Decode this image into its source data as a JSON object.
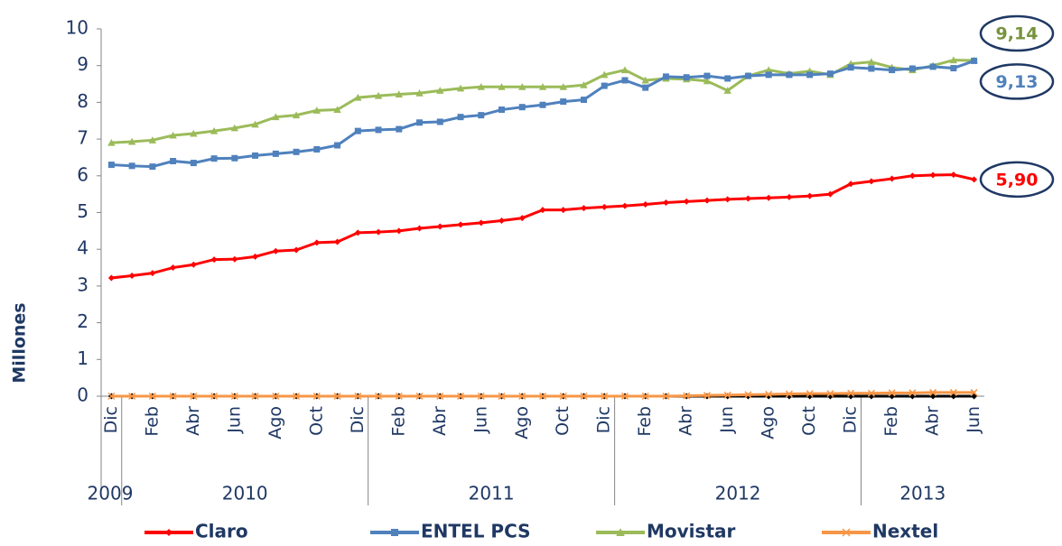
{
  "chart_data": {
    "type": "line",
    "y_label": "Millones",
    "categories": [
      "Dic",
      null,
      "Feb",
      null,
      "Abr",
      null,
      "Jun",
      null,
      "Ago",
      null,
      "Oct",
      null,
      "Dic",
      null,
      "Feb",
      null,
      "Abr",
      null,
      "Jun",
      null,
      "Ago",
      null,
      "Oct",
      null,
      "Dic",
      null,
      "Feb",
      null,
      "Abr",
      null,
      "Jun",
      null,
      "Ago",
      null,
      "Oct",
      null,
      "Dic",
      null,
      "Feb",
      null,
      "Abr",
      null,
      "Jun"
    ],
    "category_groups": [
      {
        "label": "2009",
        "count": 1
      },
      {
        "label": "2010",
        "count": 12
      },
      {
        "label": "2011",
        "count": 12
      },
      {
        "label": "2012",
        "count": 12
      },
      {
        "label": "2013",
        "count": 6
      }
    ],
    "ylim": [
      0,
      10
    ],
    "yticks": [
      0,
      1,
      2,
      3,
      4,
      5,
      6,
      7,
      8,
      9,
      10
    ],
    "series": [
      {
        "name": "Claro",
        "color": "#ff0000",
        "marker": "diamond",
        "values": [
          3.22,
          3.28,
          3.35,
          3.5,
          3.58,
          3.72,
          3.73,
          3.8,
          3.95,
          3.98,
          4.18,
          4.2,
          4.45,
          4.47,
          4.5,
          4.57,
          4.62,
          4.67,
          4.72,
          4.78,
          4.85,
          5.07,
          5.07,
          5.12,
          5.15,
          5.18,
          5.22,
          5.27,
          5.3,
          5.33,
          5.36,
          5.38,
          5.4,
          5.42,
          5.45,
          5.5,
          5.78,
          5.85,
          5.92,
          6.0,
          6.02,
          6.03,
          5.9
        ],
        "value_labels": [
          null,
          null,
          null,
          null,
          null,
          null,
          null,
          null,
          null,
          null,
          null,
          null,
          null,
          null,
          null,
          null,
          null,
          null,
          null,
          null,
          null,
          null,
          null,
          null,
          null,
          null,
          null,
          null,
          null,
          null,
          null,
          null,
          null,
          null,
          null,
          null,
          null,
          null,
          null,
          null,
          null,
          null,
          "5,90"
        ],
        "label_color": "#ff0000"
      },
      {
        "name": "ENTEL PCS",
        "color": "#4f81bd",
        "marker": "square",
        "values": [
          6.3,
          6.27,
          6.25,
          6.4,
          6.35,
          6.47,
          6.48,
          6.55,
          6.6,
          6.65,
          6.72,
          6.83,
          7.22,
          7.25,
          7.27,
          7.45,
          7.47,
          7.6,
          7.65,
          7.8,
          7.87,
          7.93,
          8.02,
          8.07,
          8.45,
          8.6,
          8.4,
          8.7,
          8.68,
          8.72,
          8.65,
          8.72,
          8.75,
          8.75,
          8.75,
          8.78,
          8.95,
          8.92,
          8.88,
          8.92,
          8.97,
          8.93,
          9.13
        ],
        "value_labels": [
          null,
          null,
          null,
          null,
          null,
          null,
          null,
          null,
          null,
          null,
          null,
          null,
          null,
          null,
          null,
          null,
          null,
          null,
          null,
          null,
          null,
          null,
          null,
          null,
          null,
          null,
          null,
          null,
          null,
          null,
          null,
          null,
          null,
          null,
          null,
          null,
          null,
          null,
          null,
          null,
          null,
          null,
          "9,13"
        ],
        "label_color": "#4f81bd"
      },
      {
        "name": "Movistar",
        "color": "#9bbb59",
        "marker": "triangle",
        "values": [
          6.9,
          6.93,
          6.97,
          7.1,
          7.15,
          7.22,
          7.3,
          7.4,
          7.6,
          7.65,
          7.78,
          7.8,
          8.13,
          8.18,
          8.22,
          8.25,
          8.32,
          8.38,
          8.42,
          8.42,
          8.42,
          8.42,
          8.42,
          8.47,
          8.75,
          8.88,
          8.6,
          8.65,
          8.63,
          8.58,
          8.32,
          8.72,
          8.88,
          8.78,
          8.85,
          8.75,
          9.05,
          9.1,
          8.95,
          8.88,
          9.0,
          9.15,
          9.14
        ],
        "value_labels": [
          null,
          null,
          null,
          null,
          null,
          null,
          null,
          null,
          null,
          null,
          null,
          null,
          null,
          null,
          null,
          null,
          null,
          null,
          null,
          null,
          null,
          null,
          null,
          null,
          null,
          null,
          null,
          null,
          null,
          null,
          null,
          null,
          null,
          null,
          null,
          null,
          null,
          null,
          null,
          null,
          null,
          null,
          "9,14"
        ],
        "label_color": "#77933c"
      },
      {
        "name": "Nextel",
        "color": "#f79646",
        "marker": "cross",
        "values": [
          0,
          0,
          0,
          0,
          0,
          0,
          0,
          0,
          0,
          0,
          0,
          0,
          0,
          0,
          0,
          0,
          0,
          0,
          0,
          0,
          0,
          0,
          0,
          0,
          0,
          0,
          0,
          0,
          0.01,
          0.02,
          0.03,
          0.04,
          0.05,
          0.06,
          0.07,
          0.07,
          0.08,
          0.08,
          0.09,
          0.09,
          0.1,
          0.1,
          0.1
        ]
      },
      {
        "color": "#000000",
        "marker": "diamond",
        "values": [
          0,
          0,
          0,
          0,
          0,
          0,
          0,
          0,
          0,
          0,
          0,
          0,
          0,
          0,
          0,
          0,
          0,
          0,
          0,
          0,
          0,
          0,
          0,
          0,
          0,
          0,
          0,
          0,
          0,
          0,
          0,
          0,
          0,
          0,
          0,
          0,
          0,
          0,
          0,
          0,
          0,
          0,
          0
        ]
      }
    ]
  }
}
